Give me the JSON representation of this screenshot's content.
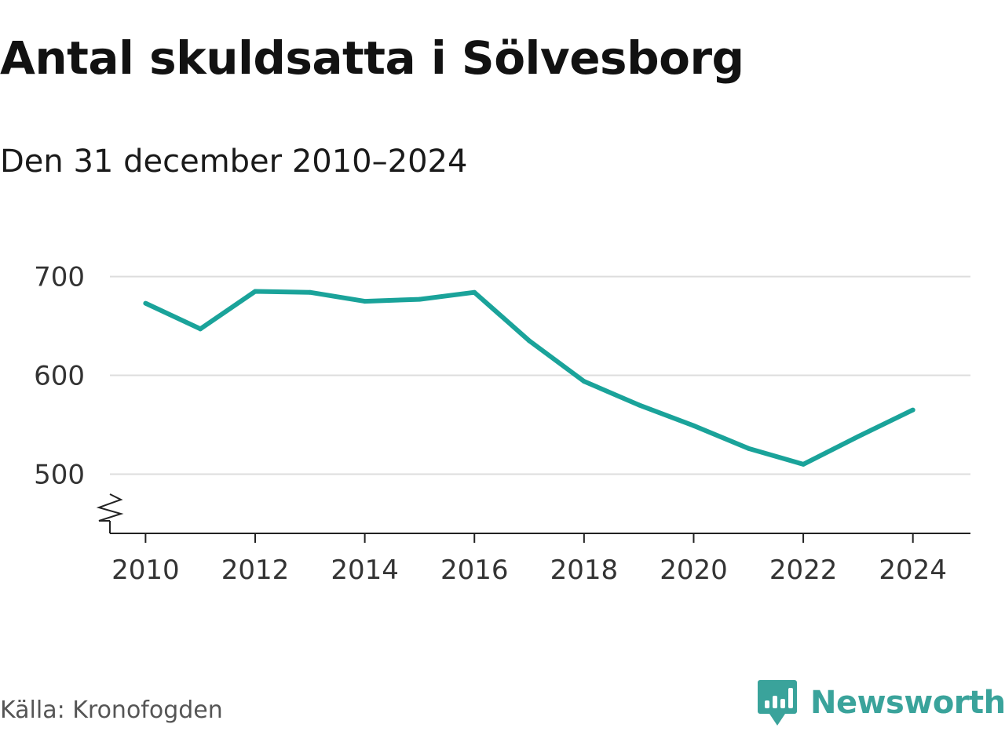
{
  "header": {
    "title": "Antal skuldsatta i Sölvesborg",
    "subtitle": "Den 31 december 2010–2024"
  },
  "footer": {
    "source": "Källa: Kronofogden",
    "brand": "Newsworthy",
    "brand_icon": "newsworthy-logo-icon"
  },
  "colors": {
    "line": "#1aa39a",
    "grid": "#dddddd",
    "axis": "#222222",
    "brand": "#3aa39b"
  },
  "chart_data": {
    "type": "line",
    "title": "Antal skuldsatta i Sölvesborg",
    "subtitle": "Den 31 december 2010–2024",
    "xlabel": "",
    "ylabel": "",
    "x": [
      2010,
      2011,
      2012,
      2013,
      2014,
      2015,
      2016,
      2017,
      2018,
      2019,
      2020,
      2021,
      2022,
      2023,
      2024
    ],
    "series": [
      {
        "values": [
          673,
          647,
          685,
          684,
          675,
          677,
          684,
          635,
          594,
          570,
          549,
          526,
          510,
          538,
          565
        ]
      }
    ],
    "x_ticks": [
      2010,
      2012,
      2014,
      2016,
      2018,
      2020,
      2022,
      2024
    ],
    "y_ticks": [
      500,
      600,
      700
    ],
    "ylim": [
      440,
      710
    ],
    "xlim": [
      2009.35,
      2025.05
    ],
    "y_axis_break": true,
    "grid": true,
    "legend": "none"
  }
}
